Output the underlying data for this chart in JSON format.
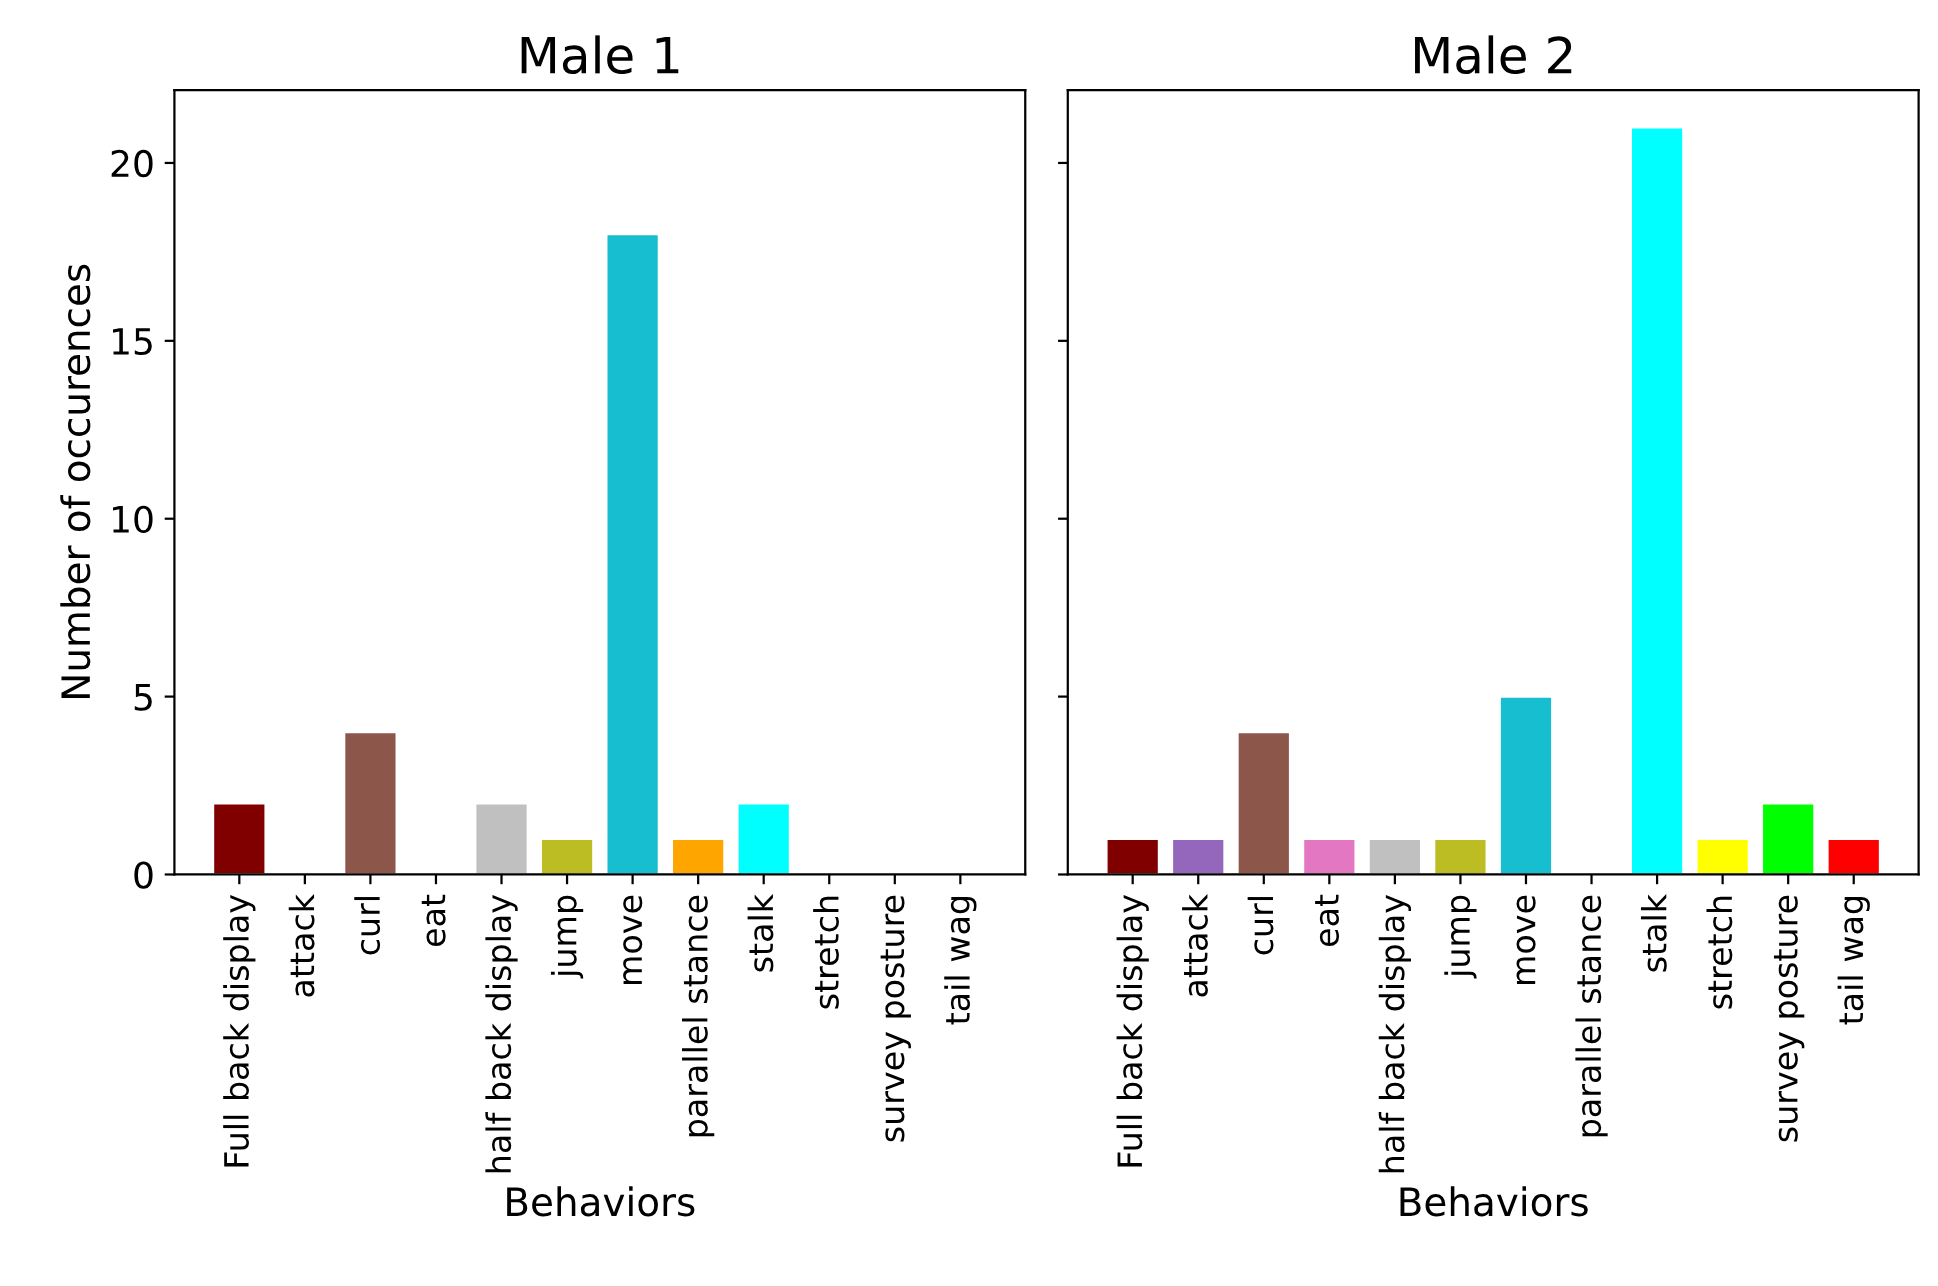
{
  "chart_data": [
    {
      "type": "bar",
      "title": "Male 1",
      "xlabel": "Behaviors",
      "ylabel": "Number of occurences",
      "categories": [
        "Full back display",
        "attack",
        "curl",
        "eat",
        "half back display",
        "jump",
        "move",
        "parallel stance",
        "stalk",
        "stretch",
        "survey posture",
        "tail wag"
      ],
      "values": [
        2,
        0,
        4,
        0,
        2,
        1,
        18,
        1,
        2,
        0,
        0,
        0
      ],
      "colors": [
        "#800000",
        null,
        "#8c564b",
        null,
        "#c0c0c0",
        "#bcbd22",
        "#17becf",
        "#ffa500",
        "#00ffff",
        null,
        null,
        null
      ],
      "ylim": [
        0,
        22.05
      ],
      "yticks": [
        0,
        5,
        10,
        15,
        20
      ],
      "grid": false,
      "legend": false
    },
    {
      "type": "bar",
      "title": "Male 2",
      "xlabel": "Behaviors",
      "categories": [
        "Full back display",
        "attack",
        "curl",
        "eat",
        "half back display",
        "jump",
        "move",
        "parallel stance",
        "stalk",
        "stretch",
        "survey posture",
        "tail wag"
      ],
      "values": [
        1,
        1,
        4,
        1,
        1,
        1,
        5,
        0,
        21,
        1,
        2,
        1
      ],
      "colors": [
        "#800000",
        "#9467bd",
        "#8c564b",
        "#e377c2",
        "#c0c0c0",
        "#bcbd22",
        "#17becf",
        null,
        "#00ffff",
        "#ffff00",
        "#00ff00",
        "#ff0000"
      ],
      "ylim": [
        0,
        22.05
      ],
      "yticks": [
        0,
        5,
        10,
        15,
        20
      ],
      "tick_labels": "x",
      "grid": false,
      "legend": false
    }
  ]
}
